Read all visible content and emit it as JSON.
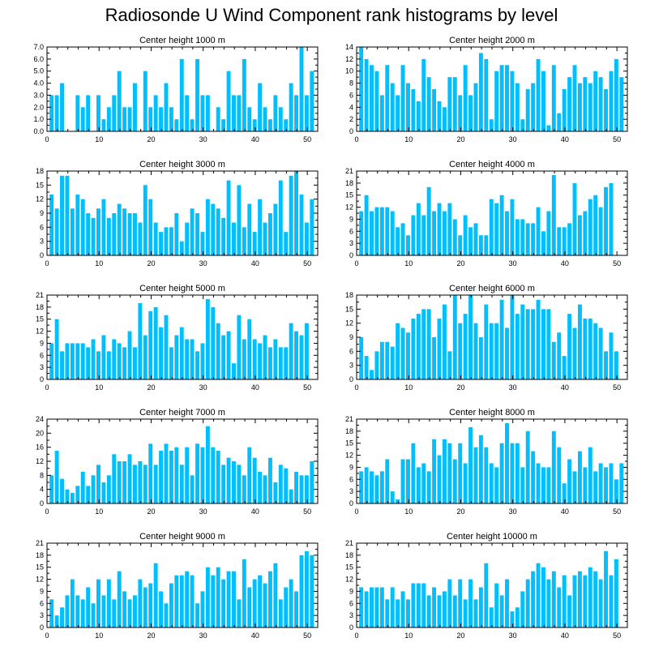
{
  "title": "Radiosonde U Wind Component rank histograms by level",
  "colors": {
    "bar": "#00bfff",
    "axis": "#000000"
  },
  "chart_data": [
    {
      "type": "bar",
      "title": "Center height 1000 m",
      "xlim": [
        0,
        52
      ],
      "ylim": [
        0,
        7
      ],
      "yticks": [
        0,
        1,
        2,
        3,
        4,
        5,
        6,
        7
      ],
      "ytick_labels": [
        "0.0",
        "1.0",
        "2.0",
        "3.0",
        "4.0",
        "5.0",
        "6.0",
        "7.0"
      ],
      "xticks": [
        0,
        10,
        20,
        30,
        40,
        50
      ],
      "values": [
        3,
        3,
        4,
        0,
        0,
        3,
        2,
        3,
        0,
        3,
        1,
        2,
        3,
        5,
        2,
        2,
        4,
        0,
        5,
        2,
        3,
        2,
        4,
        2,
        1,
        6,
        3,
        1,
        6,
        3,
        3,
        0,
        2,
        1,
        5,
        3,
        3,
        6,
        2,
        1,
        4,
        2,
        1,
        3,
        2,
        1,
        4,
        3,
        7,
        3,
        5
      ]
    },
    {
      "type": "bar",
      "title": "Center height 2000 m",
      "xlim": [
        0,
        52
      ],
      "ylim": [
        0,
        14
      ],
      "yticks": [
        0,
        2,
        4,
        6,
        8,
        10,
        12,
        14
      ],
      "ytick_labels": [
        "0",
        "2",
        "4",
        "6",
        "8",
        "10",
        "12",
        "14"
      ],
      "xticks": [
        0,
        10,
        20,
        30,
        40,
        50
      ],
      "values": [
        14,
        12,
        11,
        10,
        6,
        11,
        8,
        6,
        11,
        8,
        7,
        5,
        12,
        9,
        7,
        5,
        4,
        9,
        9,
        6,
        11,
        6,
        8,
        13,
        12,
        2,
        10,
        11,
        11,
        10,
        8,
        2,
        7,
        8,
        12,
        10,
        1,
        11,
        3,
        7,
        9,
        11,
        8,
        9,
        8,
        10,
        9,
        7,
        10,
        12,
        9
      ]
    },
    {
      "type": "bar",
      "title": "Center height 3000 m",
      "xlim": [
        0,
        52
      ],
      "ylim": [
        0,
        18
      ],
      "yticks": [
        0,
        3,
        6,
        9,
        12,
        15,
        18
      ],
      "ytick_labels": [
        "0",
        "3",
        "6",
        "9",
        "12",
        "15",
        "18"
      ],
      "xticks": [
        0,
        10,
        20,
        30,
        40,
        50
      ],
      "values": [
        13,
        10,
        17,
        17,
        10,
        13,
        12,
        9,
        8,
        10,
        12,
        8,
        9,
        11,
        10,
        9,
        9,
        7,
        15,
        12,
        7,
        5,
        6,
        6,
        9,
        3,
        7,
        10,
        9,
        5,
        12,
        11,
        10,
        8,
        16,
        7,
        15,
        6,
        11,
        5,
        12,
        7,
        9,
        11,
        16,
        5,
        17,
        18,
        13,
        7,
        12
      ]
    },
    {
      "type": "bar",
      "title": "Center height 4000 m",
      "xlim": [
        0,
        52
      ],
      "ylim": [
        0,
        21
      ],
      "yticks": [
        0,
        3,
        6,
        9,
        12,
        15,
        18,
        21
      ],
      "ytick_labels": [
        "0",
        "3",
        "6",
        "9",
        "12",
        "15",
        "18",
        "21"
      ],
      "xticks": [
        0,
        10,
        20,
        30,
        40,
        50
      ],
      "values": [
        11,
        15,
        11,
        12,
        12,
        12,
        11,
        7,
        8,
        5,
        10,
        13,
        10,
        17,
        11,
        13,
        11,
        13,
        9,
        5,
        10,
        7,
        8,
        5,
        5,
        14,
        13,
        15,
        11,
        14,
        9,
        9,
        8,
        8,
        12,
        6,
        11,
        20,
        7,
        7,
        8,
        18,
        10,
        11,
        14,
        15,
        12,
        17,
        18,
        0,
        0
      ]
    },
    {
      "type": "bar",
      "title": "Center height 5000 m",
      "xlim": [
        0,
        52
      ],
      "ylim": [
        0,
        21
      ],
      "yticks": [
        0,
        3,
        6,
        9,
        12,
        15,
        18,
        21
      ],
      "ytick_labels": [
        "0",
        "3",
        "6",
        "9",
        "12",
        "15",
        "18",
        "21"
      ],
      "xticks": [
        0,
        10,
        20,
        30,
        40,
        50
      ],
      "values": [
        9,
        15,
        7,
        9,
        9,
        9,
        9,
        8,
        10,
        7,
        11,
        7,
        10,
        9,
        8,
        12,
        8,
        19,
        11,
        17,
        18,
        13,
        16,
        8,
        11,
        13,
        10,
        10,
        7,
        9,
        20,
        18,
        14,
        11,
        12,
        4,
        16,
        10,
        15,
        10,
        9,
        11,
        8,
        10,
        8,
        8,
        14,
        12,
        11,
        14,
        0
      ]
    },
    {
      "type": "bar",
      "title": "Center height 6000 m",
      "xlim": [
        0,
        52
      ],
      "ylim": [
        0,
        18
      ],
      "yticks": [
        0,
        3,
        6,
        9,
        12,
        15,
        18
      ],
      "ytick_labels": [
        "0",
        "3",
        "6",
        "9",
        "12",
        "15",
        "18"
      ],
      "xticks": [
        0,
        10,
        20,
        30,
        40,
        50
      ],
      "values": [
        9,
        5,
        2,
        6,
        8,
        8,
        7,
        12,
        11,
        10,
        13,
        14,
        15,
        15,
        9,
        13,
        16,
        6,
        18,
        12,
        14,
        18,
        12,
        9,
        16,
        12,
        12,
        17,
        11,
        18,
        14,
        16,
        15,
        15,
        17,
        15,
        15,
        8,
        10,
        5,
        14,
        11,
        16,
        13,
        13,
        12,
        11,
        6,
        10,
        6,
        0
      ]
    },
    {
      "type": "bar",
      "title": "Center height 7000 m",
      "xlim": [
        0,
        52
      ],
      "ylim": [
        0,
        24
      ],
      "yticks": [
        0,
        4,
        8,
        12,
        16,
        20,
        24
      ],
      "ytick_labels": [
        "0",
        "4",
        "8",
        "12",
        "16",
        "20",
        "24"
      ],
      "xticks": [
        0,
        10,
        20,
        30,
        40,
        50
      ],
      "values": [
        8,
        15,
        7,
        4,
        3,
        5,
        9,
        5,
        8,
        11,
        6,
        8,
        14,
        12,
        12,
        14,
        11,
        12,
        11,
        17,
        11,
        15,
        17,
        15,
        16,
        11,
        16,
        8,
        17,
        16,
        22,
        16,
        15,
        11,
        13,
        12,
        11,
        8,
        16,
        13,
        9,
        8,
        13,
        6,
        11,
        10,
        4,
        9,
        8,
        8,
        12
      ]
    },
    {
      "type": "bar",
      "title": "Center height 8000 m",
      "xlim": [
        0,
        52
      ],
      "ylim": [
        0,
        21
      ],
      "yticks": [
        0,
        3,
        6,
        9,
        12,
        15,
        18,
        21
      ],
      "ytick_labels": [
        "0",
        "3",
        "6",
        "9",
        "12",
        "15",
        "18",
        "21"
      ],
      "xticks": [
        0,
        10,
        20,
        30,
        40,
        50
      ],
      "values": [
        8,
        9,
        8,
        7,
        8,
        11,
        3,
        1,
        11,
        11,
        15,
        9,
        10,
        8,
        16,
        12,
        16,
        15,
        11,
        15,
        10,
        19,
        14,
        17,
        14,
        10,
        9,
        15,
        20,
        15,
        15,
        9,
        18,
        13,
        10,
        9,
        9,
        18,
        14,
        5,
        11,
        8,
        13,
        9,
        14,
        8,
        10,
        9,
        10,
        6,
        10
      ]
    },
    {
      "type": "bar",
      "title": "Center height 9000 m",
      "xlim": [
        0,
        52
      ],
      "ylim": [
        0,
        21
      ],
      "yticks": [
        0,
        3,
        6,
        9,
        12,
        15,
        18,
        21
      ],
      "ytick_labels": [
        "0",
        "3",
        "6",
        "9",
        "12",
        "15",
        "18",
        "21"
      ],
      "xticks": [
        0,
        10,
        20,
        30,
        40,
        50
      ],
      "values": [
        7,
        3,
        5,
        8,
        12,
        8,
        7,
        10,
        6,
        12,
        8,
        12,
        7,
        14,
        9,
        7,
        8,
        12,
        10,
        11,
        16,
        9,
        6,
        11,
        13,
        13,
        14,
        13,
        6,
        9,
        15,
        13,
        15,
        12,
        14,
        14,
        7,
        17,
        10,
        12,
        13,
        11,
        14,
        16,
        7,
        10,
        12,
        9,
        18,
        19,
        18
      ]
    },
    {
      "type": "bar",
      "title": "Center height 10000 m",
      "xlim": [
        0,
        52
      ],
      "ylim": [
        0,
        21
      ],
      "yticks": [
        0,
        3,
        6,
        9,
        12,
        15,
        18,
        21
      ],
      "ytick_labels": [
        "0",
        "3",
        "6",
        "9",
        "12",
        "15",
        "18",
        "21"
      ],
      "xticks": [
        0,
        10,
        20,
        30,
        40,
        50
      ],
      "values": [
        10,
        9,
        10,
        10,
        10,
        7,
        10,
        7,
        9,
        7,
        11,
        11,
        11,
        8,
        10,
        8,
        9,
        12,
        8,
        12,
        7,
        12,
        7,
        10,
        16,
        5,
        11,
        8,
        12,
        4,
        5,
        9,
        12,
        14,
        16,
        15,
        12,
        14,
        10,
        13,
        8,
        13,
        14,
        13,
        15,
        14,
        12,
        19,
        13,
        17,
        0
      ]
    }
  ]
}
